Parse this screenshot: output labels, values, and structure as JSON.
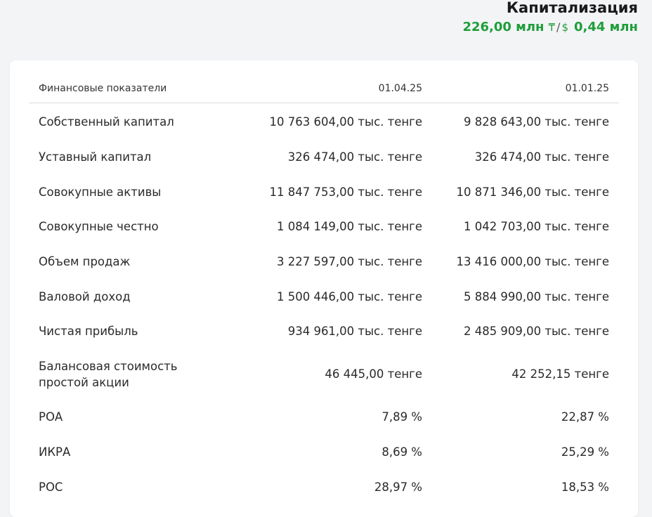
{
  "capitalization": {
    "title": "Капитализация",
    "kzt_value": "226,00 млн",
    "kzt_symbol": "₸",
    "separator": "/",
    "usd_symbol": "$",
    "usd_value": "0,44 млн",
    "accent_color": "#1e9e3a"
  },
  "table": {
    "headers": [
      "Финансовые показатели",
      "01.04.25",
      "01.01.25"
    ],
    "rows": [
      [
        "Собственный капитал",
        "10 763 604,00 тыс. тенге",
        "9 828 643,00 тыс. тенге"
      ],
      [
        "Уставный капитал",
        "326 474,00 тыс. тенге",
        "326 474,00 тыс. тенге"
      ],
      [
        "Совокупные активы",
        "11 847 753,00 тыс. тенге",
        "10 871 346,00 тыс. тенге"
      ],
      [
        "Совокупные честно",
        "1 084 149,00 тыс. тенге",
        "1 042 703,00 тыс. тенге"
      ],
      [
        "Объем продаж",
        "3 227 597,00 тыс. тенге",
        "13 416 000,00 тыс. тенге"
      ],
      [
        "Валовой доход",
        "1 500 446,00 тыс. тенге",
        "5 884 990,00 тыс. тенге"
      ],
      [
        "Чистая прибыль",
        "934 961,00 тыс. тенге",
        "2 485 909,00 тыс. тенге"
      ],
      [
        "Балансовая стоимость\nпростой акции",
        "46 445,00 тенге",
        "42 252,15 тенге"
      ],
      [
        "РОА",
        "7,89 %",
        "22,87 %"
      ],
      [
        "ИКРА",
        "8,69 %",
        "25,29 %"
      ],
      [
        "РОС",
        "28,97 %",
        "18,53 %"
      ]
    ]
  }
}
